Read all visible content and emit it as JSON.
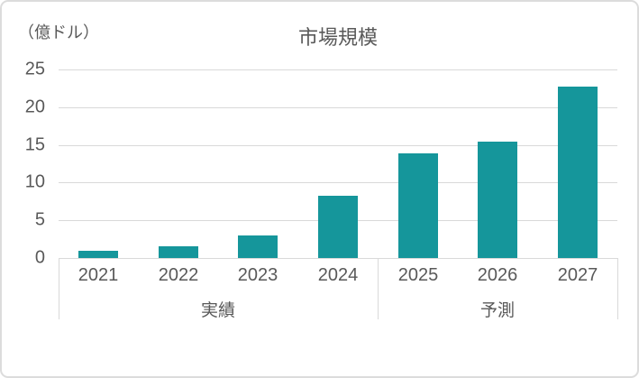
{
  "chart_data": {
    "type": "bar",
    "title": "市場規模",
    "unit_label": "（億ドル）",
    "categories": [
      "2021",
      "2022",
      "2023",
      "2024",
      "2025",
      "2026",
      "2027"
    ],
    "values": [
      0.9,
      1.5,
      3.0,
      8.3,
      13.9,
      15.4,
      22.7
    ],
    "groups": [
      {
        "label": "実績",
        "start": 0,
        "end": 3
      },
      {
        "label": "予測",
        "start": 4,
        "end": 6
      }
    ],
    "xlabel": "",
    "ylabel": "（億ドル）",
    "ylim": [
      0,
      25
    ],
    "yticks": [
      0,
      5,
      10,
      15,
      20,
      25
    ],
    "grid": true,
    "legend": "none",
    "colors": {
      "bar": "#15969B",
      "gridline": "#D9D9D9",
      "text": "#595959",
      "border": "#DCDCDC",
      "background": "#FFFFFF"
    }
  }
}
